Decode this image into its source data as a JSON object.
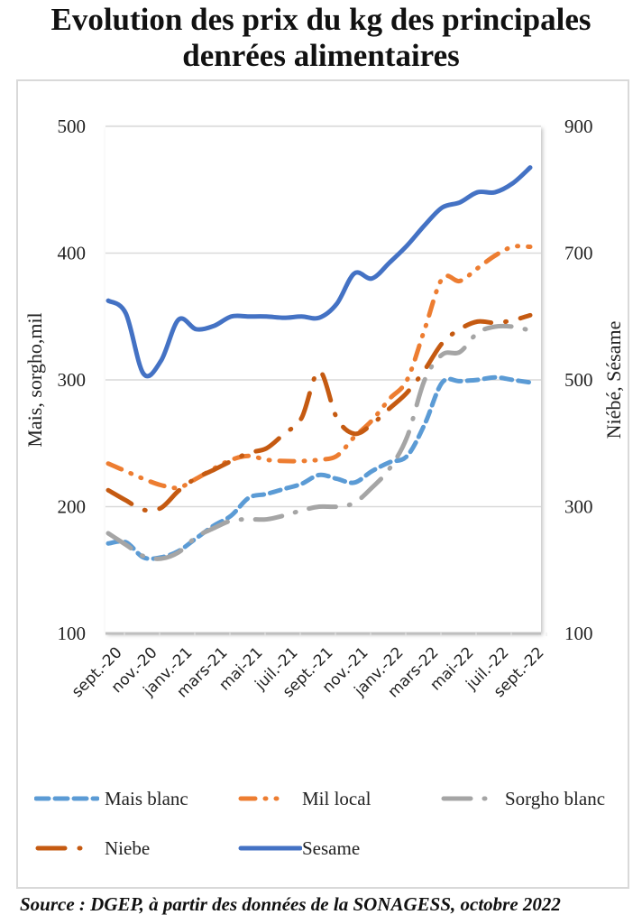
{
  "title_line1": "Evolution des prix du kg des principales",
  "title_line2": "denrées alimentaires",
  "source": "Source : DGEP, à partir des données de la SONAGESS, octobre 2022",
  "chart_data": {
    "type": "line",
    "title": "Evolution des prix du kg des principales denrées alimentaires",
    "ylabel": "Mais, sorgho,mil",
    "y2label": "Niébé, Sésame",
    "ylim": [
      100,
      500
    ],
    "y2lim": [
      100,
      900
    ],
    "yticks": [
      "100",
      "200",
      "300",
      "400",
      "500"
    ],
    "y2ticks": [
      "100",
      "300",
      "500",
      "700",
      "900"
    ],
    "grid": true,
    "legend_position": "bottom",
    "x": [
      "sept.-20",
      "oct.-20",
      "nov.-20",
      "déc.-20",
      "janv.-21",
      "févr.-21",
      "mars-21",
      "avr.-21",
      "mai-21",
      "juin-21",
      "juil.-21",
      "août-21",
      "sept.-21",
      "oct.-21",
      "nov.-21",
      "déc.-21",
      "janv.-22",
      "févr.-22",
      "mars-22",
      "avr.-22",
      "mai-22",
      "juin-22",
      "juil.-22",
      "août-22",
      "sept.-22"
    ],
    "xtick_labels": [
      "sept.-20",
      "nov.-20",
      "janv.-21",
      "mars-21",
      "mai-21",
      "juil.-21",
      "sept.-21",
      "nov.-21",
      "janv.-22",
      "mars-22",
      "mai-22",
      "juil.-22",
      "sept.-22"
    ],
    "series": [
      {
        "name": "Mais blanc",
        "axis": "left",
        "color": "#5B9BD5",
        "style": "dash",
        "values": [
          171,
          172,
          160,
          160,
          165,
          175,
          185,
          193,
          207,
          210,
          214,
          218,
          225,
          222,
          219,
          228,
          235,
          240,
          265,
          298,
          299,
          300,
          302,
          300,
          298
        ]
      },
      {
        "name": "Mil local",
        "axis": "left",
        "color": "#ED7D31",
        "style": "dashdot",
        "values": [
          234,
          228,
          222,
          217,
          215,
          222,
          230,
          237,
          240,
          237,
          236,
          236,
          237,
          240,
          255,
          268,
          285,
          300,
          340,
          380,
          378,
          388,
          398,
          405,
          405
        ]
      },
      {
        "name": "Sorgho blanc",
        "axis": "left",
        "color": "#A5A5A5",
        "style": "longdash",
        "values": [
          179,
          170,
          161,
          159,
          164,
          176,
          183,
          189,
          190,
          190,
          193,
          197,
          200,
          200,
          203,
          215,
          230,
          255,
          300,
          320,
          322,
          337,
          342,
          342,
          339
        ]
      },
      {
        "name": "Niebe",
        "axis": "right",
        "color": "#C55A11",
        "style": "longdashdot",
        "values": [
          326,
          310,
          295,
          298,
          325,
          345,
          358,
          372,
          385,
          392,
          415,
          440,
          514,
          440,
          415,
          430,
          455,
          480,
          516,
          558,
          580,
          592,
          590,
          594,
          602
        ]
      },
      {
        "name": "Sesame",
        "axis": "right",
        "color": "#4472C4",
        "style": "solid",
        "values": [
          625,
          605,
          510,
          530,
          595,
          580,
          585,
          600,
          600,
          600,
          598,
          600,
          598,
          620,
          668,
          660,
          685,
          712,
          744,
          772,
          780,
          796,
          796,
          810,
          835
        ]
      }
    ]
  }
}
